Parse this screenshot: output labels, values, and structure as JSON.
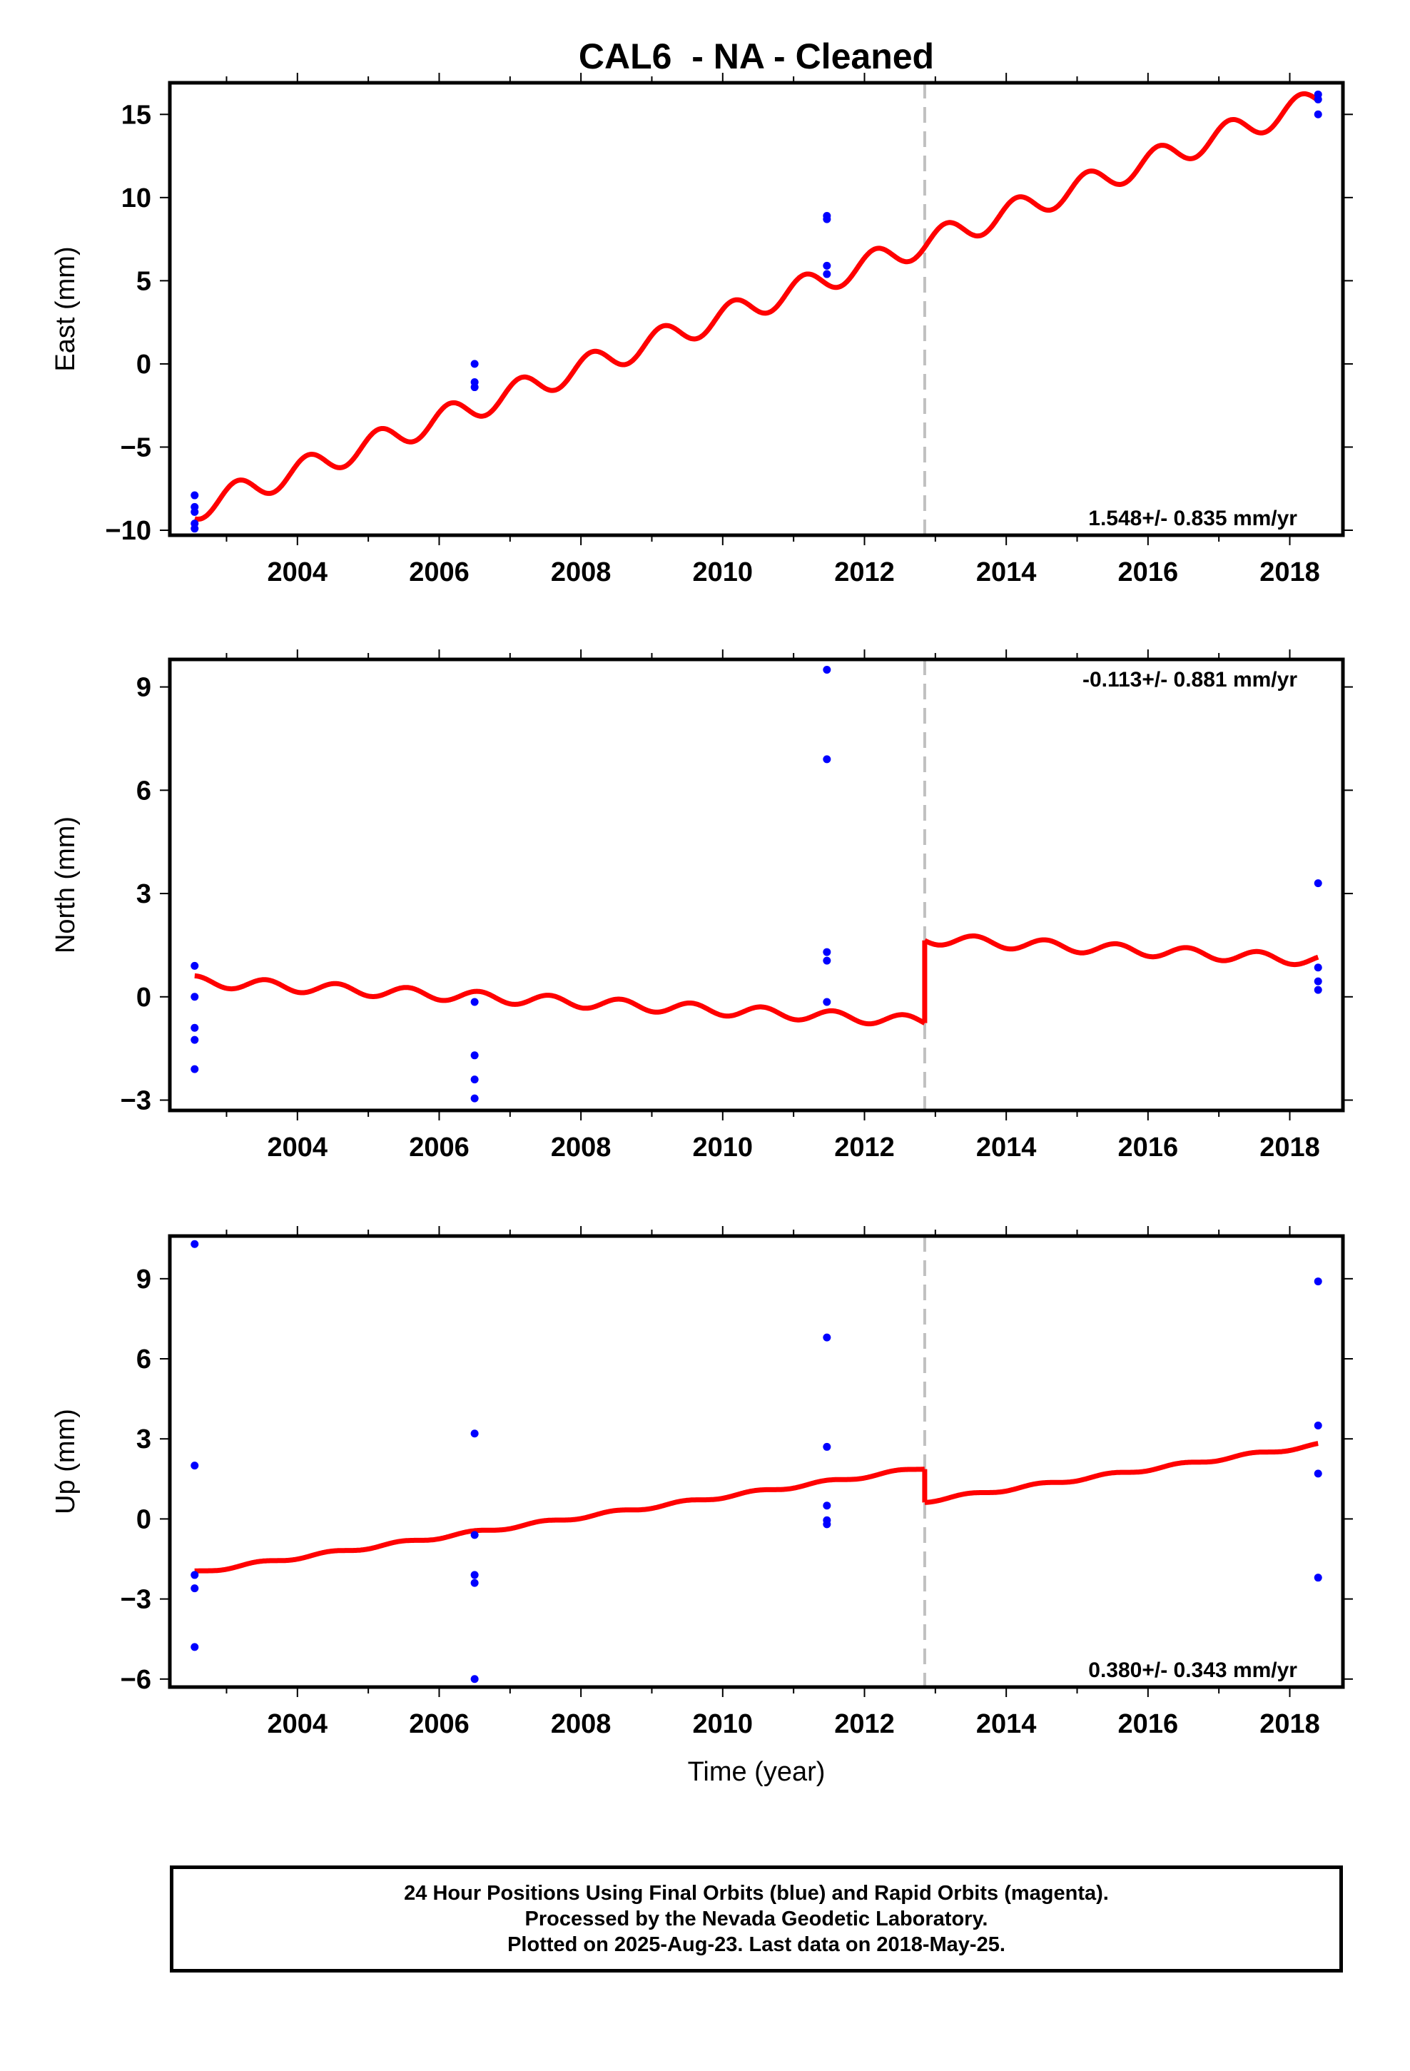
{
  "title": "CAL6  - NA - Cleaned",
  "xlabel": "Time (year)",
  "footer": {
    "line1": "24 Hour Positions Using Final Orbits (blue) and Rapid Orbits (magenta).",
    "line2": "Processed by the Nevada Geodetic Laboratory.",
    "line3": "Plotted on 2025-Aug-23. Last data on 2018-May-25."
  },
  "colors": {
    "data_points": "#0000ff",
    "model": "#ff0000",
    "break_line": "#c0c0c0",
    "axes": "#000000"
  },
  "chart_data": [
    {
      "type": "scatter",
      "panel": "east",
      "ylabel": "East (mm)",
      "rate": "1.548+/- 0.835 mm/yr",
      "xlim": [
        2002.2,
        2018.75
      ],
      "ylim": [
        -10.3,
        16.9
      ],
      "yticks": [
        -10,
        -5,
        0,
        5,
        10,
        15
      ],
      "ytick_labels": [
        "−10",
        "−5",
        "0",
        "5",
        "10",
        "15"
      ],
      "xticks": [
        2004,
        2006,
        2008,
        2010,
        2012,
        2014,
        2016,
        2018
      ],
      "xtick_labels": [
        "2004",
        "2006",
        "2008",
        "2010",
        "2012",
        "2014",
        "2016",
        "2018"
      ],
      "break_epoch": 2012.85,
      "points": [
        {
          "x": 2002.55,
          "y": -7.9
        },
        {
          "x": 2002.55,
          "y": -8.6
        },
        {
          "x": 2002.55,
          "y": -8.9
        },
        {
          "x": 2002.55,
          "y": -9.6
        },
        {
          "x": 2002.55,
          "y": -9.9
        },
        {
          "x": 2006.5,
          "y": 0.0
        },
        {
          "x": 2006.5,
          "y": -1.1
        },
        {
          "x": 2006.5,
          "y": -1.4
        },
        {
          "x": 2011.47,
          "y": 8.9
        },
        {
          "x": 2011.47,
          "y": 8.7
        },
        {
          "x": 2011.47,
          "y": 5.9
        },
        {
          "x": 2011.47,
          "y": 5.4
        },
        {
          "x": 2018.4,
          "y": 16.2
        },
        {
          "x": 2018.4,
          "y": 15.9
        },
        {
          "x": 2018.4,
          "y": 15.0
        }
      ],
      "model": {
        "start": 2002.55,
        "end": 2018.4,
        "value_at_start": -8.7,
        "rate": 1.548,
        "seasonal_amplitude": 0.75,
        "seasonal_phase": 0.9,
        "offset_at_break": 0.0
      }
    },
    {
      "type": "scatter",
      "panel": "north",
      "ylabel": "North (mm)",
      "rate": "-0.113+/- 0.881 mm/yr",
      "xlim": [
        2002.2,
        2018.75
      ],
      "ylim": [
        -3.3,
        9.8
      ],
      "yticks": [
        -3,
        0,
        3,
        6,
        9
      ],
      "ytick_labels": [
        "−3",
        "0",
        "3",
        "6",
        "9"
      ],
      "xticks": [
        2004,
        2006,
        2008,
        2010,
        2012,
        2014,
        2016,
        2018
      ],
      "xtick_labels": [
        "2004",
        "2006",
        "2008",
        "2010",
        "2012",
        "2014",
        "2016",
        "2018"
      ],
      "break_epoch": 2012.85,
      "points": [
        {
          "x": 2002.55,
          "y": 0.9
        },
        {
          "x": 2002.55,
          "y": 0.0
        },
        {
          "x": 2002.55,
          "y": -0.9
        },
        {
          "x": 2002.55,
          "y": -1.25
        },
        {
          "x": 2002.55,
          "y": -2.1
        },
        {
          "x": 2006.5,
          "y": -0.15
        },
        {
          "x": 2006.5,
          "y": -1.7
        },
        {
          "x": 2006.5,
          "y": -2.4
        },
        {
          "x": 2006.5,
          "y": -2.95
        },
        {
          "x": 2011.47,
          "y": 9.5
        },
        {
          "x": 2011.47,
          "y": 6.9
        },
        {
          "x": 2011.47,
          "y": 1.3
        },
        {
          "x": 2011.47,
          "y": 1.05
        },
        {
          "x": 2011.47,
          "y": -0.15
        },
        {
          "x": 2018.4,
          "y": 3.3
        },
        {
          "x": 2018.4,
          "y": 0.85
        },
        {
          "x": 2018.4,
          "y": 0.45
        },
        {
          "x": 2018.4,
          "y": 0.2
        }
      ],
      "model": {
        "start": 2002.55,
        "end": 2018.4,
        "value_at_start": 0.45,
        "rate": -0.113,
        "seasonal_amplitude": 0.16,
        "seasonal_phase": 0.3,
        "offset_at_break": 2.4
      }
    },
    {
      "type": "scatter",
      "panel": "up",
      "ylabel": "Up (mm)",
      "rate": "0.380+/- 0.343 mm/yr",
      "xlim": [
        2002.2,
        2018.75
      ],
      "ylim": [
        -6.3,
        10.6
      ],
      "yticks": [
        -6,
        -3,
        0,
        3,
        6,
        9
      ],
      "ytick_labels": [
        "−6",
        "−3",
        "0",
        "3",
        "6",
        "9"
      ],
      "xticks": [
        2004,
        2006,
        2008,
        2010,
        2012,
        2014,
        2016,
        2018
      ],
      "xtick_labels": [
        "2004",
        "2006",
        "2008",
        "2010",
        "2012",
        "2014",
        "2016",
        "2018"
      ],
      "break_epoch": 2012.85,
      "points": [
        {
          "x": 2002.55,
          "y": 10.3
        },
        {
          "x": 2002.55,
          "y": 2.0
        },
        {
          "x": 2002.55,
          "y": -2.1
        },
        {
          "x": 2002.55,
          "y": -2.6
        },
        {
          "x": 2002.55,
          "y": -4.8
        },
        {
          "x": 2006.5,
          "y": 3.2
        },
        {
          "x": 2006.5,
          "y": -0.6
        },
        {
          "x": 2006.5,
          "y": -2.1
        },
        {
          "x": 2006.5,
          "y": -2.4
        },
        {
          "x": 2006.5,
          "y": -6.0
        },
        {
          "x": 2011.47,
          "y": 6.8
        },
        {
          "x": 2011.47,
          "y": 2.7
        },
        {
          "x": 2011.47,
          "y": 0.5
        },
        {
          "x": 2011.47,
          "y": -0.05
        },
        {
          "x": 2011.47,
          "y": -0.2
        },
        {
          "x": 2018.4,
          "y": 8.9
        },
        {
          "x": 2018.4,
          "y": 3.5
        },
        {
          "x": 2018.4,
          "y": 1.7
        },
        {
          "x": 2018.4,
          "y": -2.2
        }
      ],
      "model": {
        "start": 2002.55,
        "end": 2018.4,
        "value_at_start": -2.0,
        "rate": 0.38,
        "seasonal_amplitude": 0.06,
        "seasonal_phase": 0.2,
        "offset_at_break": -1.25
      }
    }
  ]
}
